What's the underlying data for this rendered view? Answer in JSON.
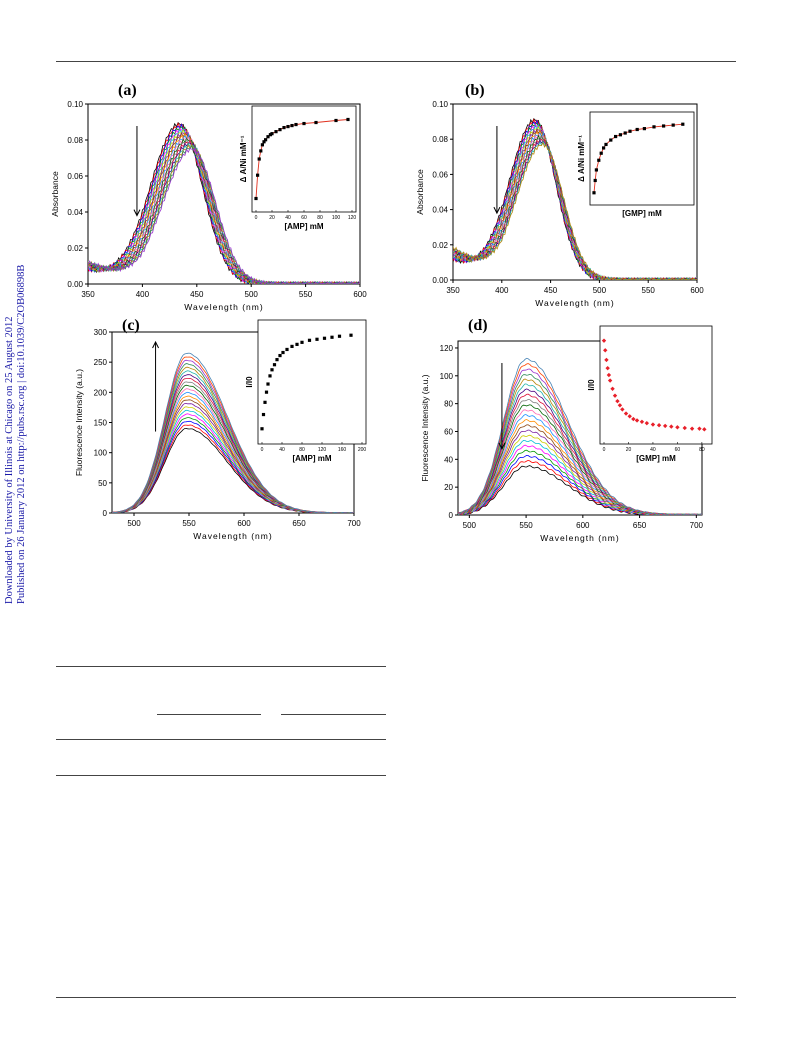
{
  "sidebar": {
    "line1": "Downloaded by University of Illinois at Chicago on 25 August 2012",
    "line2": "Published on 26 January 2012 on http://pubs.rsc.org | doi:10.1039/C2OB06898B"
  },
  "chart_data": [
    {
      "panel_label": "(a)",
      "type": "line",
      "xlabel": "Wavelength (nm)",
      "ylabel": "Absorbance",
      "xlim": [
        350,
        600
      ],
      "ylim": [
        0.0,
        0.1
      ],
      "x_ticks": [
        "350",
        "400",
        "450",
        "500",
        "550",
        "600"
      ],
      "y_ticks": [
        "0.00",
        "0.02",
        "0.04",
        "0.06",
        "0.08",
        "0.10"
      ],
      "peak_x": [
        434,
        446
      ],
      "peak_y": [
        0.089,
        0.075
      ],
      "curve_count": 20,
      "arrow": "down",
      "inset": {
        "type": "scatter",
        "xlabel": "[AMP] mM",
        "ylabel": "Δ A/Ni mM⁻¹",
        "xlim": [
          0,
          120
        ],
        "x_ticks": [
          "0",
          "20",
          "40",
          "60",
          "80",
          "100",
          "120"
        ],
        "points": [
          [
            0,
            0.05
          ],
          [
            2,
            0.28
          ],
          [
            4,
            0.44
          ],
          [
            6,
            0.52
          ],
          [
            8,
            0.58
          ],
          [
            10,
            0.61
          ],
          [
            12,
            0.63
          ],
          [
            15,
            0.66
          ],
          [
            18,
            0.68
          ],
          [
            20,
            0.69
          ],
          [
            25,
            0.71
          ],
          [
            30,
            0.73
          ],
          [
            35,
            0.75
          ],
          [
            40,
            0.76
          ],
          [
            45,
            0.77
          ],
          [
            50,
            0.78
          ],
          [
            60,
            0.79
          ],
          [
            75,
            0.8
          ],
          [
            100,
            0.82
          ],
          [
            115,
            0.83
          ]
        ],
        "fit": "line"
      }
    },
    {
      "panel_label": "(b)",
      "type": "line",
      "xlabel": "Wavelength (nm)",
      "ylabel": "Absorbance",
      "xlim": [
        350,
        600
      ],
      "ylim": [
        0.0,
        0.1
      ],
      "x_ticks": [
        "350",
        "400",
        "450",
        "500",
        "550",
        "600"
      ],
      "y_ticks": [
        "0.00",
        "0.02",
        "0.04",
        "0.06",
        "0.08",
        "0.10"
      ],
      "peak_x": [
        434,
        442
      ],
      "peak_y": [
        0.091,
        0.077
      ],
      "curve_count": 18,
      "arrow": "down",
      "inset": {
        "type": "scatter",
        "xlabel": "[GMP] mM",
        "ylabel": "Δ A/Ni mM⁻¹",
        "xlim": [
          0,
          80
        ],
        "points": [
          [
            0,
            0.08
          ],
          [
            1,
            0.22
          ],
          [
            2,
            0.34
          ],
          [
            4,
            0.45
          ],
          [
            6,
            0.53
          ],
          [
            8,
            0.59
          ],
          [
            10,
            0.63
          ],
          [
            14,
            0.68
          ],
          [
            18,
            0.72
          ],
          [
            22,
            0.74
          ],
          [
            26,
            0.76
          ],
          [
            30,
            0.78
          ],
          [
            36,
            0.8
          ],
          [
            42,
            0.81
          ],
          [
            50,
            0.83
          ],
          [
            58,
            0.84
          ],
          [
            66,
            0.85
          ],
          [
            74,
            0.86
          ]
        ],
        "fit": "line"
      }
    },
    {
      "panel_label": "(c)",
      "type": "line",
      "xlabel": "Wavelength (nm)",
      "ylabel": "Fluorescence Intensity (a.u.)",
      "xlim": [
        480,
        700
      ],
      "ylim": [
        0,
        300
      ],
      "x_ticks": [
        "500",
        "550",
        "600",
        "650",
        "700"
      ],
      "y_ticks": [
        "0",
        "50",
        "100",
        "150",
        "200",
        "250",
        "300"
      ],
      "peak_x": 548,
      "peak_y": [
        140,
        265
      ],
      "curve_count": 22,
      "arrow": "up",
      "inset": {
        "type": "scatter",
        "xlabel": "[AMP] mM",
        "ylabel": "I/I0",
        "xlim": [
          0,
          200
        ],
        "x_ticks": [
          "0",
          "40",
          "80",
          "120",
          "160",
          "200"
        ],
        "points": [
          [
            0,
            1.0
          ],
          [
            3,
            1.14
          ],
          [
            6,
            1.26
          ],
          [
            9,
            1.36
          ],
          [
            12,
            1.44
          ],
          [
            16,
            1.52
          ],
          [
            20,
            1.58
          ],
          [
            25,
            1.63
          ],
          [
            30,
            1.68
          ],
          [
            36,
            1.72
          ],
          [
            42,
            1.75
          ],
          [
            50,
            1.78
          ],
          [
            60,
            1.81
          ],
          [
            70,
            1.83
          ],
          [
            80,
            1.85
          ],
          [
            95,
            1.87
          ],
          [
            110,
            1.88
          ],
          [
            125,
            1.89
          ],
          [
            140,
            1.9
          ],
          [
            155,
            1.91
          ],
          [
            178,
            1.92
          ]
        ]
      }
    },
    {
      "panel_label": "(d)",
      "type": "line",
      "xlabel": "Wavelength (nm)",
      "ylabel": "Fluorescence Intensity (a.u.)",
      "xlim": [
        490,
        705
      ],
      "ylim": [
        0,
        125
      ],
      "x_ticks": [
        "500",
        "550",
        "600",
        "650",
        "700"
      ],
      "y_ticks": [
        "0",
        "20",
        "40",
        "60",
        "80",
        "100",
        "120"
      ],
      "peak_x": 550,
      "peak_y": [
        35,
        112
      ],
      "curve_count": 22,
      "arrow": "down",
      "inset": {
        "type": "scatter",
        "xlabel": "[GMP] mM",
        "ylabel": "I/I0",
        "xlim": [
          0,
          85
        ],
        "x_ticks": [
          "0",
          "20",
          "40",
          "60",
          "80"
        ],
        "points": [
          [
            0,
            1.0
          ],
          [
            1,
            0.93
          ],
          [
            2,
            0.86
          ],
          [
            3,
            0.8
          ],
          [
            4,
            0.75
          ],
          [
            5,
            0.71
          ],
          [
            7,
            0.65
          ],
          [
            9,
            0.6
          ],
          [
            11,
            0.56
          ],
          [
            13,
            0.53
          ],
          [
            15,
            0.5
          ],
          [
            18,
            0.47
          ],
          [
            21,
            0.45
          ],
          [
            24,
            0.43
          ],
          [
            27,
            0.42
          ],
          [
            31,
            0.41
          ],
          [
            35,
            0.4
          ],
          [
            40,
            0.39
          ],
          [
            45,
            0.385
          ],
          [
            50,
            0.38
          ],
          [
            55,
            0.375
          ],
          [
            60,
            0.37
          ],
          [
            66,
            0.365
          ],
          [
            72,
            0.36
          ],
          [
            78,
            0.36
          ],
          [
            82,
            0.355
          ]
        ]
      }
    }
  ]
}
